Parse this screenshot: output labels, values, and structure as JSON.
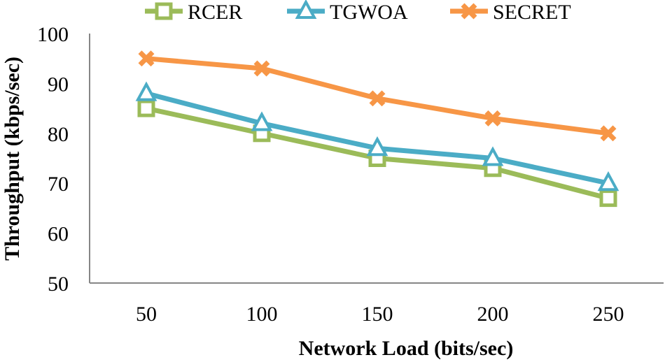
{
  "chart_data": {
    "type": "line",
    "title": "",
    "xlabel": "Network Load (bits/sec)",
    "ylabel": "Throughput (kbps/sec)",
    "categories": [
      "50",
      "100",
      "150",
      "200",
      "250"
    ],
    "yticks": [
      "50",
      "60",
      "70",
      "80",
      "90",
      "100"
    ],
    "ylim": [
      50,
      100
    ],
    "grid": false,
    "legend_position": "top",
    "series": [
      {
        "name": "RCER",
        "values": [
          85,
          80,
          75,
          73,
          67
        ],
        "color": "#9BBB59",
        "marker": "square"
      },
      {
        "name": "TGWOA",
        "values": [
          88,
          82,
          77,
          75,
          70
        ],
        "color": "#4BACC6",
        "marker": "triangle"
      },
      {
        "name": "SECRET",
        "values": [
          95,
          93,
          87,
          83,
          80
        ],
        "color": "#F79646",
        "marker": "x"
      }
    ]
  }
}
